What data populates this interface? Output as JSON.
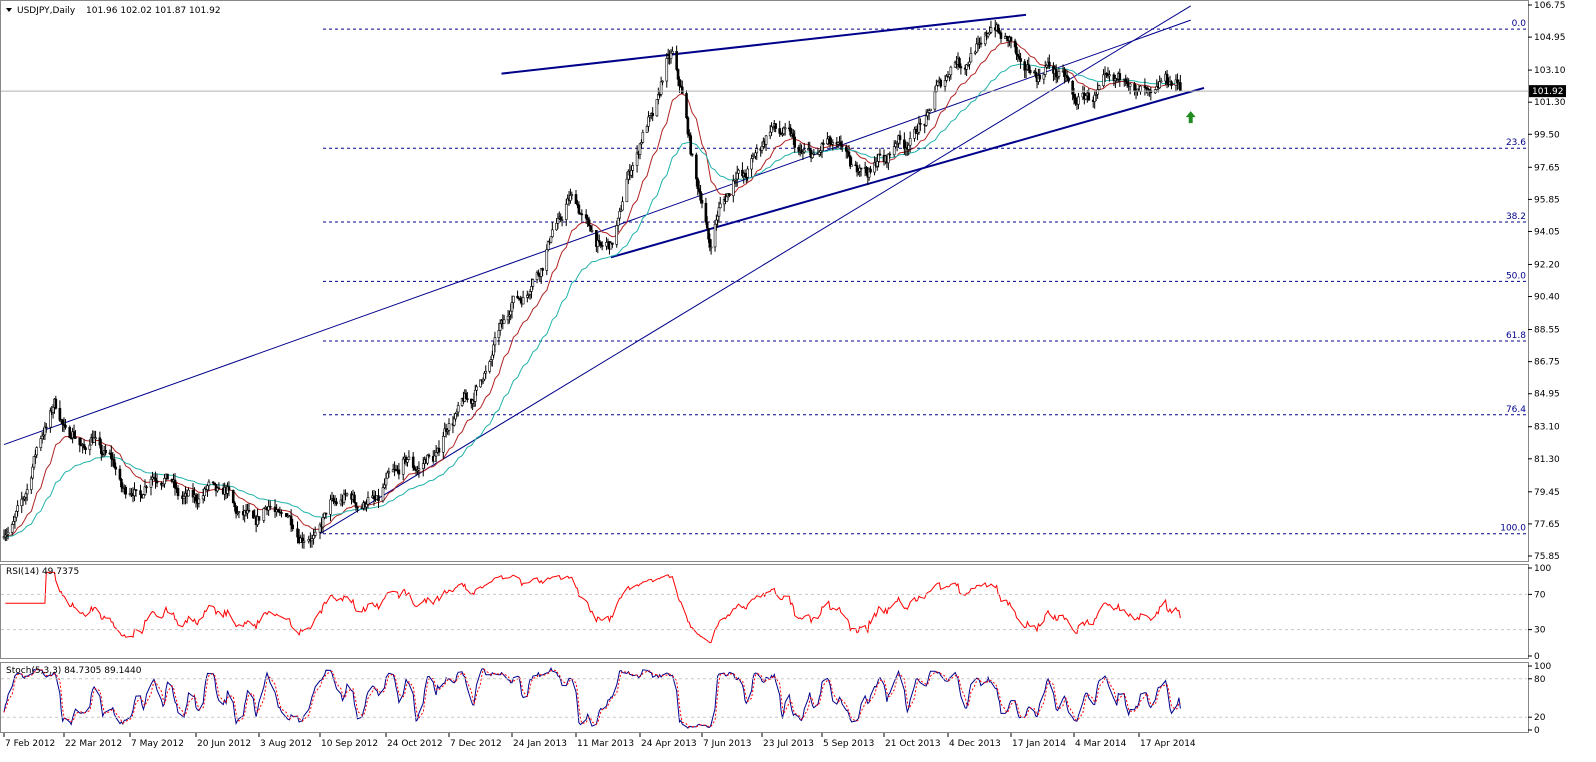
{
  "header": {
    "symbol_label": "USDJPY,Daily",
    "ohlc": "101.96 102.02 101.87 101.92"
  },
  "rsi": {
    "label": "RSI(14) 49.7375",
    "levels": [
      100,
      70,
      30,
      0
    ]
  },
  "stoch": {
    "label": "Stoch(5,3,3) 84.7305 89.1440",
    "levels": [
      100,
      80,
      20,
      0
    ]
  },
  "colors": {
    "candles": "#000000",
    "ma_fast": "#b22222",
    "ma_slow": "#20b2aa",
    "trendlines": "#00008b",
    "fib_lines": "#00008b",
    "rsi": "#ff0000",
    "stoch_main": "#00008b",
    "stoch_signal": "#ff0000",
    "arrow": "#228b22",
    "price_tag": "#000000"
  },
  "chart_data": {
    "type": "candlestick",
    "x_ticks": [
      "7 Feb 2012",
      "22 Mar 2012",
      "7 May 2012",
      "20 Jun 2012",
      "3 Aug 2012",
      "10 Sep 2012",
      "24 Oct 2012",
      "7 Dec 2012",
      "24 Jan 2013",
      "11 Mar 2013",
      "24 Apr 2013",
      "7 Jun 2013",
      "23 Jul 2013",
      "5 Sep 2013",
      "21 Oct 2013",
      "4 Dec 2013",
      "17 Jan 2014",
      "4 Mar 2014",
      "17 Apr 2014"
    ],
    "y_ticks": [
      106.75,
      104.95,
      103.1,
      101.3,
      99.5,
      97.65,
      95.85,
      94.05,
      92.2,
      90.4,
      88.55,
      86.75,
      84.95,
      83.1,
      81.3,
      79.45,
      77.65,
      75.85
    ],
    "ylim": [
      75.0,
      107.3
    ],
    "last_price": 101.92,
    "last_price_label": "101.92",
    "price_path": [
      {
        "date": "7 Feb 2012",
        "value": 76.9
      },
      {
        "date": "22 Mar 2012",
        "value": 83.5
      },
      {
        "date": "7 May 2012",
        "value": 79.8
      },
      {
        "date": "20 Jun 2012",
        "value": 79.6
      },
      {
        "date": "3 Aug 2012",
        "value": 78.3
      },
      {
        "date": "10 Sep 2012",
        "value": 78.0
      },
      {
        "date": "24 Oct 2012",
        "value": 79.8
      },
      {
        "date": "7 Dec 2012",
        "value": 82.6
      },
      {
        "date": "24 Jan 2013",
        "value": 89.5
      },
      {
        "date": "11 Mar 2013",
        "value": 96.0
      },
      {
        "date": "24 Apr 2013",
        "value": 99.5
      },
      {
        "date": "7 Jun 2013",
        "value": 96.0
      },
      {
        "date": "23 Jul 2013",
        "value": 99.5
      },
      {
        "date": "5 Sep 2013",
        "value": 98.7
      },
      {
        "date": "21 Oct 2013",
        "value": 97.6
      },
      {
        "date": "4 Dec 2013",
        "value": 102.5
      },
      {
        "date": "17 Jan 2014",
        "value": 104.2
      },
      {
        "date": "4 Mar 2014",
        "value": 101.9
      },
      {
        "date": "17 Apr 2014",
        "value": 102.4
      }
    ],
    "price_swings": [
      {
        "date": "15 Mar 2012",
        "value": 83.9
      },
      {
        "date": "5 Sep 2012",
        "value": 77.1
      },
      {
        "date": "4 Apr 2013",
        "value": 92.6
      },
      {
        "date": "17 May 2013",
        "value": 103.7
      },
      {
        "date": "13 Jun 2013",
        "value": 93.8
      },
      {
        "date": "30 Dec 2013",
        "value": 105.4
      },
      {
        "date": "15 May 2014",
        "value": 101.9
      }
    ],
    "fib_levels": [
      {
        "label": "0.0",
        "value": 105.4
      },
      {
        "label": "23.6",
        "value": 98.72
      },
      {
        "label": "38.2",
        "value": 94.58
      },
      {
        "label": "50.0",
        "value": 91.25
      },
      {
        "label": "61.8",
        "value": 87.91
      },
      {
        "label": "76.4",
        "value": 83.77
      },
      {
        "label": "100.0",
        "value": 77.1
      }
    ],
    "trendlines": [
      {
        "name": "upper_wedge",
        "from": {
          "date": "16 Jan 2013",
          "value": 102.9
        },
        "to": {
          "date": "28 Jan 2014",
          "value": 106.2
        }
      },
      {
        "name": "lower_wedge",
        "from": {
          "date": "4 Apr 2013",
          "value": 92.6
        },
        "to": {
          "date": "31 May 2014",
          "value": 102.1
        }
      },
      {
        "name": "channel_upper",
        "from": {
          "date": "7 Feb 2012",
          "value": 82.1
        },
        "to": {
          "date": "22 May 2014",
          "value": 105.9
        }
      },
      {
        "name": "channel_lower",
        "from": {
          "date": "10 Sep 2012",
          "value": 77.1
        },
        "to": {
          "date": "22 May 2014",
          "value": 106.7
        }
      }
    ]
  }
}
